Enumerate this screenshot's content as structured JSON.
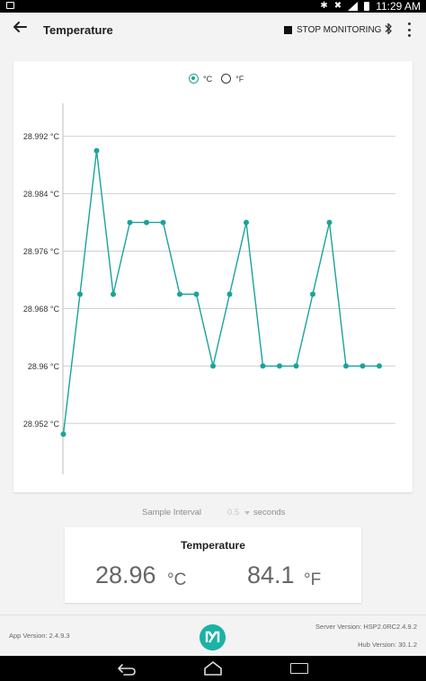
{
  "status_bar": {
    "time": "11:29",
    "time_suffix": "AM"
  },
  "toolbar": {
    "title": "Temperature",
    "stop_label": "STOP MONITORING"
  },
  "unit_toggle": {
    "celsius_label": "°C",
    "fahrenheit_label": "°F",
    "selected": "celsius"
  },
  "chart_data": {
    "type": "line",
    "x": [
      1,
      2,
      3,
      4,
      5,
      6,
      7,
      8,
      9,
      10,
      11,
      12,
      13,
      14,
      15,
      16,
      17,
      18,
      19,
      20
    ],
    "series": [
      {
        "values": [
          28.9505,
          28.97,
          28.99,
          28.97,
          28.98,
          28.98,
          28.98,
          28.97,
          28.97,
          28.96,
          28.97,
          28.98,
          28.96,
          28.96,
          28.96,
          28.97,
          28.98,
          28.96,
          28.96,
          28.96
        ],
        "color": "#1aa39a"
      }
    ],
    "ytick_values": [
      28.952,
      28.96,
      28.968,
      28.976,
      28.984,
      28.992
    ],
    "ytick_labels": [
      "28.952 °C",
      "28.96 °C",
      "28.968 °C",
      "28.976 °C",
      "28.984 °C",
      "28.992 °C"
    ],
    "ylim": [
      28.9449,
      28.9966
    ],
    "grid": true,
    "legend": false
  },
  "sample_interval": {
    "label": "Sample Interval",
    "value": "0.5",
    "unit": "seconds"
  },
  "temperature_card": {
    "title": "Temperature",
    "celsius_value": "28.96",
    "celsius_unit": "°C",
    "fahrenheit_value": "84.1",
    "fahrenheit_unit": "°F"
  },
  "footer": {
    "app_version": "App Version: 2.4.9.3",
    "server_version": "Server Version: HSP2.0RC2.4.9.2",
    "hub_version": "Hub Version: 30.1.2"
  },
  "colors": {
    "accent": "#1aa39a",
    "logo": "#1ab3a6",
    "background": "#f3f3f3"
  }
}
